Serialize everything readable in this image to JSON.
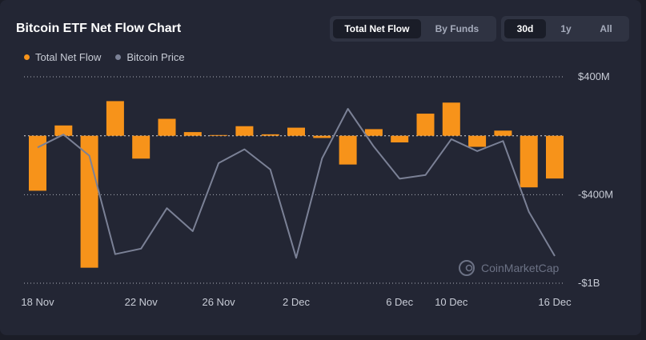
{
  "header": {
    "title": "Bitcoin ETF Net Flow Chart"
  },
  "mode_tabs": {
    "total_net_flow": "Total Net Flow",
    "by_funds": "By Funds",
    "active": "Total Net Flow"
  },
  "range_tabs": {
    "d30": "30d",
    "y1": "1y",
    "all": "All",
    "active": "30d"
  },
  "watermark": {
    "text": "CoinMarketCap"
  },
  "colors": {
    "bar": "#f7931a",
    "line": "#7b8196",
    "grid": "#cfd3dc",
    "background": "#232634"
  },
  "chart_data": {
    "type": "bar",
    "title": "Bitcoin ETF Net Flow Chart",
    "legend": [
      "Total Net Flow",
      "Bitcoin Price"
    ],
    "legend_position": "top-left",
    "x_tick_labels": [
      "18 Nov",
      "22 Nov",
      "26 Nov",
      "2 Dec",
      "6 Dec",
      "10 Dec",
      "16 Dec"
    ],
    "x_tick_index": [
      0,
      4,
      7,
      10,
      14,
      16,
      20
    ],
    "y_ticks": [
      400,
      -400,
      -1000
    ],
    "y_tick_labels": [
      "$400M",
      "-$400M",
      "-$1B"
    ],
    "ylim": [
      -1000,
      400
    ],
    "grid": "horizontal-dotted",
    "series": [
      {
        "name": "Total Net Flow",
        "type": "bar",
        "unit": "M USD",
        "values": [
          -373,
          70,
          -895,
          235,
          -155,
          115,
          25,
          5,
          65,
          10,
          55,
          -15,
          -195,
          45,
          -45,
          150,
          225,
          -75,
          35,
          -350,
          -290
        ]
      },
      {
        "name": "Bitcoin Price",
        "type": "line",
        "scale": "relative, no axis printed",
        "values": [
          0.59,
          0.66,
          0.545,
          0.01,
          0.04,
          0.26,
          0.135,
          0.505,
          0.58,
          0.47,
          -0.01,
          0.53,
          0.8,
          0.595,
          0.42,
          0.44,
          0.635,
          0.57,
          0.625,
          0.24,
          0.0
        ]
      }
    ]
  }
}
